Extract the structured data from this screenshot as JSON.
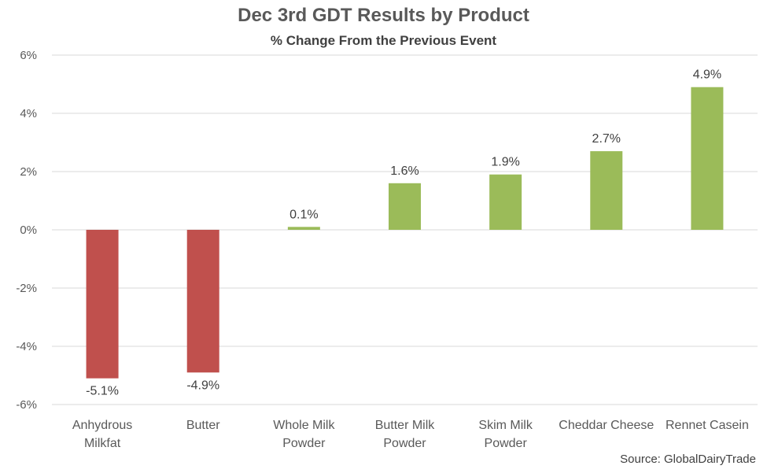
{
  "chart_data": {
    "type": "bar",
    "title": "Dec 3rd GDT Results by Product",
    "subtitle": "% Change From the Previous Event",
    "categories": [
      [
        "Anhydrous",
        "Milkfat"
      ],
      [
        "Butter"
      ],
      [
        "Whole Milk",
        "Powder"
      ],
      [
        "Butter Milk",
        "Powder"
      ],
      [
        "Skim Milk",
        "Powder"
      ],
      [
        "Cheddar Cheese"
      ],
      [
        "Rennet Casein"
      ]
    ],
    "values": [
      -5.1,
      -4.9,
      0.1,
      1.6,
      1.9,
      2.7,
      4.9
    ],
    "data_labels": [
      "-5.1%",
      "-4.9%",
      "0.1%",
      "1.6%",
      "1.9%",
      "2.7%",
      "4.9%"
    ],
    "ylim": [
      -6,
      6
    ],
    "yticks": [
      6,
      4,
      2,
      0,
      -2,
      -4,
      -6
    ],
    "ytick_labels": [
      "6%",
      "4%",
      "2%",
      "0%",
      "-2%",
      "-4%",
      "-6%"
    ],
    "grid": true,
    "colors": {
      "positive": "#9bbb59",
      "negative": "#c0504d",
      "grid": "#d9d9d9"
    }
  },
  "source": "Source: GlobalDairyTrade"
}
